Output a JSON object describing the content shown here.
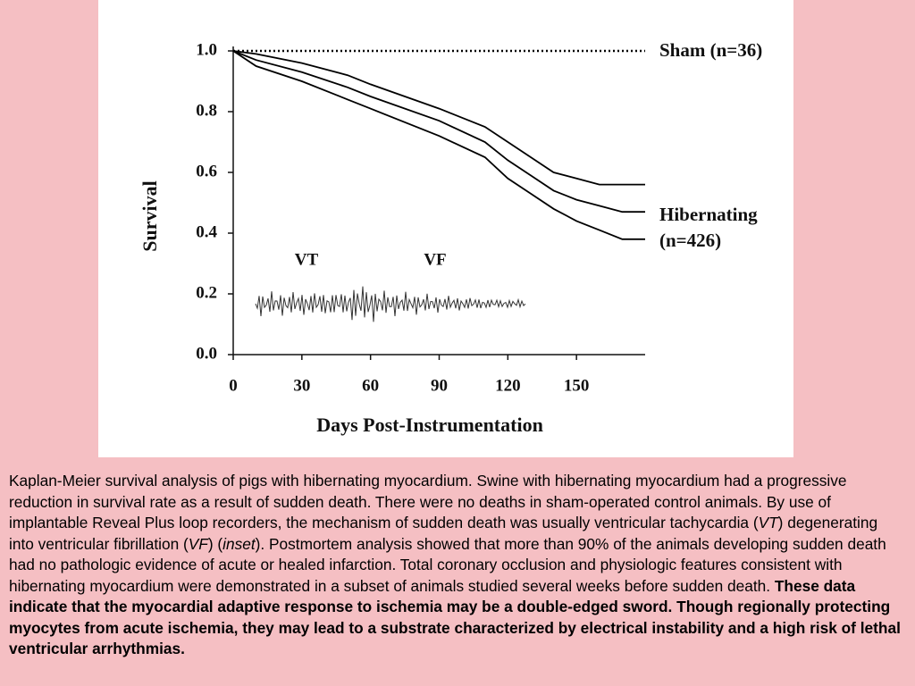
{
  "chart_data": {
    "type": "line",
    "ylabel": "Survival",
    "xlabel": "Days Post-Instrumentation",
    "x": [
      0,
      10,
      30,
      50,
      60,
      90,
      110,
      120,
      130,
      140,
      150,
      160,
      170,
      180
    ],
    "xlim": [
      0,
      180
    ],
    "xticks": [
      0,
      30,
      60,
      90,
      120,
      150
    ],
    "ylim": [
      0,
      1
    ],
    "yticks": [
      {
        "value": 0,
        "label": "0.0"
      },
      0.2,
      0.4,
      0.6,
      0.8,
      {
        "value": 1,
        "label": "1.0"
      }
    ],
    "series": [
      {
        "name": "Sham (n=36)",
        "color": "#000000",
        "dash": "dotted",
        "values": [
          1,
          1,
          1,
          1,
          1,
          1,
          1,
          1,
          1,
          1,
          1,
          1,
          1,
          1
        ]
      },
      {
        "name": "Hibernating (n=426)",
        "color": "#000000",
        "dash": "solid",
        "values": [
          1,
          0.97,
          0.93,
          0.88,
          0.85,
          0.77,
          0.7,
          0.64,
          0.59,
          0.54,
          0.51,
          0.49,
          0.47,
          0.47
        ],
        "upper": [
          1,
          0.99,
          0.96,
          0.92,
          0.89,
          0.81,
          0.75,
          0.7,
          0.65,
          0.6,
          0.58,
          0.56,
          0.56,
          0.56
        ],
        "lower": [
          1,
          0.95,
          0.9,
          0.84,
          0.81,
          0.72,
          0.65,
          0.58,
          0.53,
          0.48,
          0.44,
          0.41,
          0.38,
          0.38
        ]
      }
    ],
    "annotations": [
      "VT",
      "VF"
    ]
  },
  "caption": [
    {
      "text": "Kaplan-Meier survival analysis of pigs with hibernating myocardium. Swine with hibernating myocardium had a progressive reduction in survival rate as a result of sudden death. There were no deaths in sham-operated control animals. By use of implantable Reveal Plus loop recorders, the mechanism of sudden death was usually ventricular tachycardia (",
      "style": "normal"
    },
    {
      "text": "VT",
      "style": "italic"
    },
    {
      "text": ") degenerating into ventricular fibrillation (",
      "style": "normal"
    },
    {
      "text": "VF",
      "style": "italic"
    },
    {
      "text": ") (",
      "style": "normal"
    },
    {
      "text": "inset",
      "style": "italic"
    },
    {
      "text": "). Postmortem analysis showed that more than 90% of the animals developing sudden death had no pathologic evidence of acute or healed infarction. Total coronary occlusion and physiologic features consistent with hibernating myocardium were demonstrated in a subset of animals studied several weeks before sudden death. ",
      "style": "normal"
    },
    {
      "text": "These data indicate that the myocardial adaptive response to ischemia may be a double-edged sword. Though regionally protecting myocytes from acute ischemia, they may lead to a substrate characterized by electrical instability and a high risk of lethal ventricular arrhythmias.",
      "style": "bold"
    }
  ]
}
